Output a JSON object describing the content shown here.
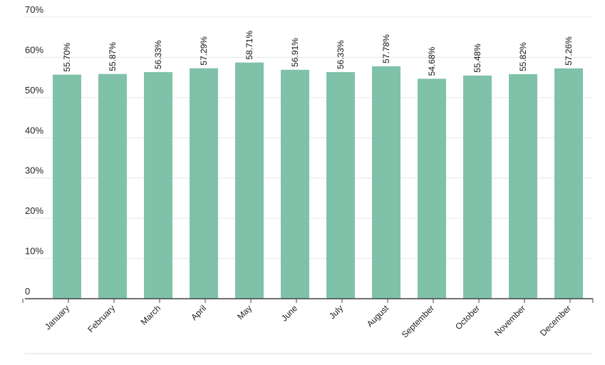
{
  "chart_data": {
    "type": "bar",
    "title": "",
    "xlabel": "",
    "ylabel": "",
    "ylim": [
      0,
      70
    ],
    "grid": true,
    "bar_color": "#80c2a9",
    "y_ticks": [
      {
        "value": 0,
        "label": "0"
      },
      {
        "value": 10,
        "label": "10%"
      },
      {
        "value": 20,
        "label": "20%"
      },
      {
        "value": 30,
        "label": "30%"
      },
      {
        "value": 40,
        "label": "40%"
      },
      {
        "value": 50,
        "label": "50%"
      },
      {
        "value": 60,
        "label": "60%"
      },
      {
        "value": 70,
        "label": "70%"
      }
    ],
    "categories": [
      "January",
      "February",
      "March",
      "April",
      "May",
      "June",
      "July",
      "August",
      "September",
      "October",
      "November",
      "December"
    ],
    "values": [
      55.7,
      55.87,
      56.33,
      57.29,
      58.71,
      56.91,
      56.33,
      57.78,
      54.68,
      55.48,
      55.82,
      57.26
    ],
    "value_labels": [
      "55.70%",
      "55.87%",
      "56.33%",
      "57.29%",
      "58.71%",
      "56.91%",
      "56.33%",
      "57.78%",
      "54.68%",
      "55.48%",
      "55.82%",
      "57.26%"
    ]
  }
}
